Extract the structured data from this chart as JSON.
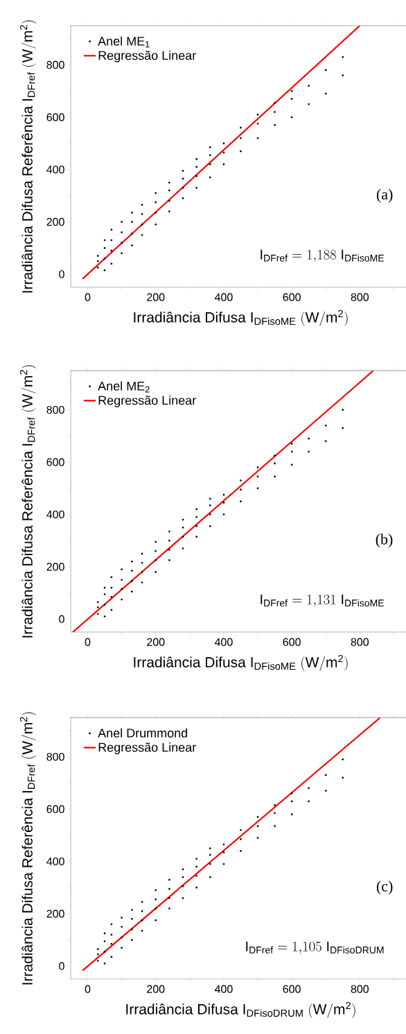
{
  "chart_data": [
    {
      "type": "scatter",
      "xlabel": "\\mathrm{Irradiância\\ Difusa\\ I}_{\\mathrm{DFisoME}}\\ \\mathrm{(W/m^{2})}",
      "ylabel": "\\mathrm{Irradiância\\ Difusa\\ Referência\\ I}_{\\mathrm{DFref}}\\ \\mathrm{(W/m^{2})}",
      "xlim": [
        -50,
        950
      ],
      "ylim": [
        -50,
        950
      ],
      "xticks": [
        0,
        {
          "value": 100,
          "label": null
        },
        200,
        {
          "value": 300,
          "label": null
        },
        400,
        {
          "value": 500,
          "label": null
        },
        600,
        {
          "value": 700,
          "label": null
        },
        800,
        {
          "value": 900,
          "label": null
        }
      ],
      "yticks": [
        0,
        {
          "value": 100,
          "label": null
        },
        200,
        {
          "value": 300,
          "label": null
        },
        400,
        {
          "value": 500,
          "label": null
        },
        600,
        {
          "value": 700,
          "label": null
        },
        800,
        {
          "value": 900,
          "label": null
        }
      ],
      "legend": "top left",
      "annotations": [
        "(a)",
        "\\mathrm{I}_{\\mathrm{DFref}} = 1{,}188\\;\\mathrm{I}_{\\mathrm{DFisoME}}"
      ],
      "series": [
        {
          "name": "Anel ME$_{1}$",
          "color": "#000000",
          "x": [
            30,
            30,
            30,
            50,
            50,
            50,
            50,
            70,
            70,
            70,
            70,
            100,
            100,
            100,
            100,
            130,
            130,
            130,
            130,
            160,
            160,
            160,
            160,
            200,
            200,
            200,
            200,
            240,
            240,
            240,
            240,
            280,
            280,
            280,
            280,
            320,
            320,
            320,
            320,
            360,
            360,
            360,
            360,
            400,
            400,
            400,
            450,
            450,
            450,
            500,
            500,
            500,
            550,
            550,
            550,
            600,
            600,
            600,
            650,
            650,
            700,
            700,
            750,
            750
          ],
          "values": [
            25,
            50,
            70,
            15,
            60,
            100,
            130,
            40,
            90,
            130,
            170,
            80,
            120,
            160,
            200,
            110,
            155,
            200,
            235,
            150,
            190,
            230,
            265,
            190,
            235,
            275,
            310,
            240,
            280,
            320,
            350,
            290,
            330,
            365,
            395,
            330,
            375,
            410,
            440,
            370,
            420,
            455,
            485,
            420,
            465,
            500,
            470,
            520,
            560,
            520,
            575,
            610,
            570,
            620,
            655,
            600,
            670,
            700,
            650,
            720,
            690,
            780,
            760,
            830
          ]
        },
        {
          "name": "Regressão Linear",
          "type": "line",
          "color": "#ff0000",
          "x": [
            -15,
            799
          ],
          "values": [
            -18,
            949
          ]
        }
      ]
    },
    {
      "type": "scatter",
      "xlabel": "\\mathrm{Irradiância\\ Difusa\\ I}_{\\mathrm{DFisoME}}\\ \\mathrm{(W/m^{2})}",
      "ylabel": "\\mathrm{Irradiância\\ Difusa\\ Referência\\ I}_{\\mathrm{DFref}}\\ \\mathrm{(W/m^{2})}",
      "xlim": [
        -50,
        950
      ],
      "ylim": [
        -50,
        950
      ],
      "xticks": [
        0,
        {
          "value": 100,
          "label": null
        },
        200,
        {
          "value": 300,
          "label": null
        },
        400,
        {
          "value": 500,
          "label": null
        },
        600,
        {
          "value": 700,
          "label": null
        },
        800,
        {
          "value": 900,
          "label": null
        }
      ],
      "yticks": [
        0,
        {
          "value": 100,
          "label": null
        },
        200,
        {
          "value": 300,
          "label": null
        },
        400,
        {
          "value": 500,
          "label": null
        },
        600,
        {
          "value": 700,
          "label": null
        },
        800,
        {
          "value": 900,
          "label": null
        }
      ],
      "legend": "top left",
      "annotations": [
        "(b)",
        "\\mathrm{I}_{\\mathrm{DFref}} = 1{,}131\\;\\mathrm{I}_{\\mathrm{DFisoME}}"
      ],
      "series": [
        {
          "name": "Anel ME$_{2}$",
          "color": "#000000",
          "x": [
            30,
            30,
            30,
            50,
            50,
            50,
            50,
            70,
            70,
            70,
            70,
            100,
            100,
            100,
            100,
            130,
            130,
            130,
            130,
            160,
            160,
            160,
            160,
            200,
            200,
            200,
            200,
            240,
            240,
            240,
            240,
            280,
            280,
            280,
            280,
            320,
            320,
            320,
            320,
            360,
            360,
            360,
            360,
            400,
            400,
            400,
            450,
            450,
            450,
            500,
            500,
            500,
            550,
            550,
            550,
            600,
            600,
            600,
            650,
            650,
            700,
            700,
            750,
            750
          ],
          "values": [
            20,
            45,
            65,
            10,
            55,
            95,
            120,
            35,
            85,
            120,
            160,
            75,
            115,
            150,
            190,
            105,
            145,
            185,
            220,
            140,
            180,
            215,
            250,
            180,
            225,
            260,
            295,
            225,
            265,
            300,
            335,
            270,
            315,
            350,
            380,
            315,
            355,
            390,
            420,
            355,
            400,
            435,
            460,
            400,
            445,
            475,
            450,
            495,
            530,
            500,
            545,
            580,
            545,
            595,
            625,
            590,
            640,
            670,
            640,
            690,
            680,
            740,
            730,
            800
          ]
        },
        {
          "name": "Regressão Linear",
          "type": "line",
          "color": "#ff0000",
          "x": [
            -44,
            839
          ],
          "values": [
            -50,
            949
          ]
        }
      ]
    },
    {
      "type": "scatter",
      "xlabel": "\\mathrm{Irradiância\\ Difusa\\ I}_{\\mathrm{DFisoDRUM}}\\ \\mathrm{(W/m^{2})}",
      "ylabel": "\\mathrm{Irradiância\\ Difusa\\ Referência\\ I}_{\\mathrm{DFref}}\\ \\mathrm{(W/m^{2})}",
      "xlim": [
        -50,
        950
      ],
      "ylim": [
        -50,
        950
      ],
      "xticks": [
        0,
        {
          "value": 100,
          "label": null
        },
        200,
        {
          "value": 300,
          "label": null
        },
        400,
        {
          "value": 500,
          "label": null
        },
        600,
        {
          "value": 700,
          "label": null
        },
        800,
        {
          "value": 900,
          "label": null
        }
      ],
      "yticks": [
        0,
        {
          "value": 100,
          "label": null
        },
        200,
        {
          "value": 300,
          "label": null
        },
        400,
        {
          "value": 500,
          "label": null
        },
        600,
        {
          "value": 700,
          "label": null
        },
        800,
        {
          "value": 900,
          "label": null
        }
      ],
      "legend": "top left",
      "annotations": [
        "(c)",
        "\\mathrm{I}_{\\mathrm{DFref}} = 1{,}105\\;\\mathrm{I}_{\\mathrm{DFisoDRUM}}"
      ],
      "series": [
        {
          "name": "Anel Drummond",
          "color": "#000000",
          "x": [
            30,
            30,
            30,
            50,
            50,
            50,
            50,
            70,
            70,
            70,
            70,
            100,
            100,
            100,
            100,
            130,
            130,
            130,
            130,
            160,
            160,
            160,
            160,
            200,
            200,
            200,
            200,
            240,
            240,
            240,
            240,
            280,
            280,
            280,
            280,
            320,
            320,
            320,
            320,
            360,
            360,
            360,
            360,
            400,
            400,
            400,
            450,
            450,
            450,
            500,
            500,
            500,
            550,
            550,
            550,
            600,
            600,
            600,
            650,
            650,
            700,
            700,
            750,
            750
          ],
          "values": [
            20,
            45,
            65,
            10,
            55,
            95,
            125,
            35,
            85,
            120,
            160,
            70,
            110,
            150,
            185,
            100,
            140,
            180,
            215,
            135,
            175,
            210,
            245,
            175,
            220,
            255,
            290,
            220,
            260,
            295,
            330,
            260,
            305,
            340,
            370,
            300,
            345,
            380,
            410,
            340,
            390,
            425,
            450,
            390,
            435,
            465,
            440,
            485,
            520,
            490,
            535,
            570,
            535,
            585,
            615,
            580,
            630,
            660,
            630,
            680,
            670,
            730,
            720,
            790
          ]
        },
        {
          "name": "Regressão Linear",
          "type": "line",
          "color": "#ff0000",
          "x": [
            -15,
            859
          ],
          "values": [
            -17,
            949
          ]
        }
      ]
    }
  ]
}
